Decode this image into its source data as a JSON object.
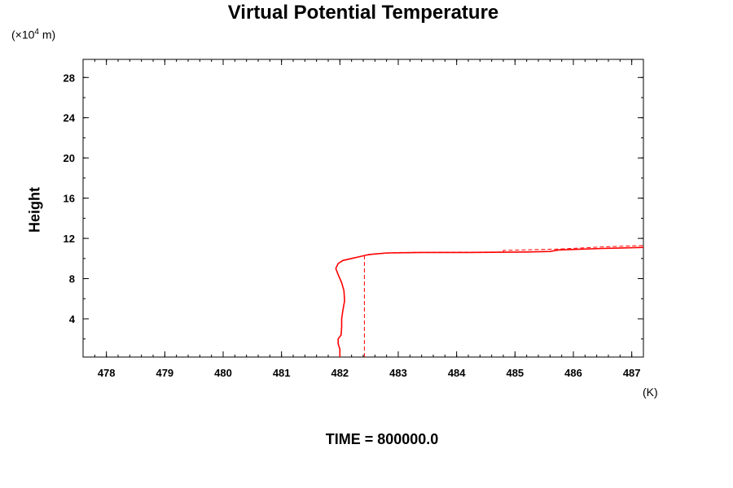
{
  "chart_data": {
    "type": "line",
    "title": "Virtual Potential Temperature",
    "ylabel": "Height",
    "yunit": "(×10",
    "yunit_exp": "4",
    "yunit_tail": " m)",
    "xunit": "(K)",
    "footer": "TIME = 800000.0",
    "xlim": [
      477.6,
      487.2
    ],
    "ylim": [
      0.2,
      29.8
    ],
    "xticks": [
      478,
      479,
      480,
      481,
      482,
      483,
      484,
      485,
      486,
      487
    ],
    "yticks": [
      4,
      8,
      12,
      16,
      20,
      24,
      28
    ],
    "colors": {
      "series": "#ff0000",
      "axis": "#000000"
    },
    "series": [
      {
        "style": "solid",
        "points": [
          [
            482.0,
            0.2
          ],
          [
            482.0,
            0.6
          ],
          [
            482.0,
            1.0
          ],
          [
            481.97,
            1.5
          ],
          [
            481.97,
            2.0
          ],
          [
            482.02,
            2.4
          ],
          [
            482.03,
            3.2
          ],
          [
            482.03,
            4.0
          ],
          [
            482.05,
            4.8
          ],
          [
            482.08,
            5.8
          ],
          [
            482.07,
            6.8
          ],
          [
            482.03,
            7.6
          ],
          [
            481.97,
            8.4
          ],
          [
            481.93,
            9.0
          ],
          [
            481.97,
            9.5
          ],
          [
            482.05,
            9.8
          ],
          [
            482.2,
            10.0
          ],
          [
            482.35,
            10.2
          ],
          [
            482.5,
            10.4
          ],
          [
            482.8,
            10.55
          ],
          [
            483.4,
            10.6
          ],
          [
            484.2,
            10.6
          ],
          [
            485.2,
            10.65
          ],
          [
            485.6,
            10.7
          ],
          [
            485.75,
            10.85
          ],
          [
            486.5,
            11.0
          ],
          [
            487.2,
            11.1
          ]
        ]
      },
      {
        "style": "dashed",
        "points": [
          [
            482.42,
            0.2
          ],
          [
            482.42,
            10.3
          ],
          [
            482.6,
            10.45
          ],
          [
            483.0,
            10.6
          ],
          [
            484.8,
            10.65
          ],
          [
            484.8,
            10.8
          ],
          [
            485.8,
            10.95
          ],
          [
            486.5,
            11.15
          ],
          [
            487.2,
            11.3
          ]
        ]
      }
    ]
  }
}
